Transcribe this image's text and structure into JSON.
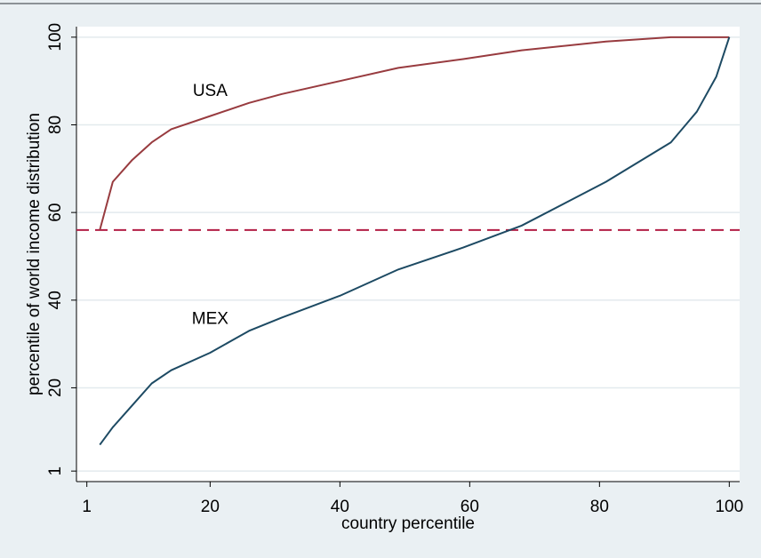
{
  "chart_data": {
    "type": "line",
    "x_label": "country percentile",
    "y_label": "percentile of world income distribution",
    "x": [
      3,
      5,
      8,
      11,
      14,
      20,
      26,
      31,
      40,
      49,
      59,
      68,
      81,
      91,
      95,
      98,
      100
    ],
    "series": [
      {
        "name": "USA",
        "color": "#983b3f",
        "values": [
          56,
          67,
          72,
          76,
          79,
          82,
          85,
          87,
          90,
          93,
          95,
          97,
          99,
          100,
          100,
          100,
          100
        ]
      },
      {
        "name": "MEX",
        "color": "#1d4a63",
        "values": [
          7,
          11,
          16,
          21,
          24,
          28,
          33,
          36,
          41,
          47,
          52,
          57,
          67,
          76,
          83,
          91,
          100
        ]
      }
    ],
    "annotations": [
      {
        "text": "USA",
        "x": 20,
        "y": 88
      },
      {
        "text": "MEX",
        "x": 20,
        "y": 36
      }
    ],
    "reference_line": {
      "value": 56,
      "color": "#b21e45",
      "dashed": true
    },
    "xlim": [
      -0.6,
      101.6
    ],
    "ylim": [
      -1.4,
      102.4
    ],
    "xticks": [
      1,
      20,
      40,
      60,
      80,
      100
    ],
    "yticks": [
      1,
      20,
      40,
      60,
      80,
      100
    ],
    "grid": true
  }
}
